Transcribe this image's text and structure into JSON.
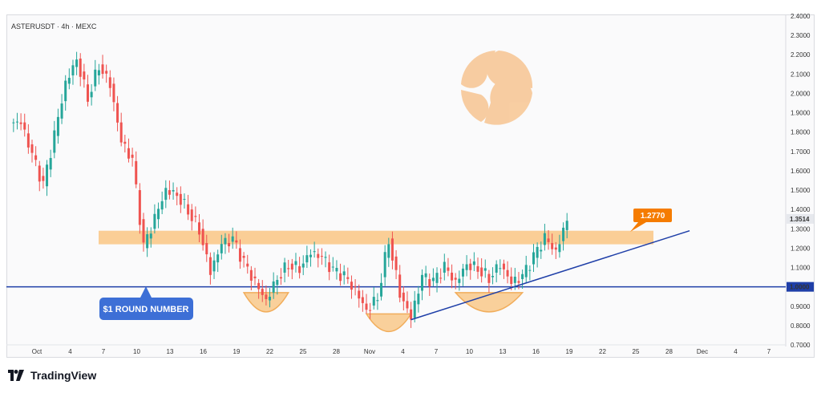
{
  "header": {
    "symbol_line": "ASTERUSDT · 4h · MEXC"
  },
  "footer": {
    "brand": "TradingView"
  },
  "colors": {
    "up": "#26a69a",
    "down": "#ef5350",
    "zone": "#f9c98b",
    "trendline": "#1f3fa8",
    "round_line": "#1f3fa8",
    "badge_orange": "#f57c00",
    "badge_blue": "#3d6fd6",
    "logo": "#f7c592"
  },
  "chart_data": {
    "type": "candlestick",
    "title": "",
    "y_axis": {
      "min": 0.7,
      "max": 2.4,
      "ticks": [
        "2.4000",
        "2.3000",
        "2.2000",
        "2.1000",
        "2.0000",
        "1.9000",
        "1.8000",
        "1.7000",
        "1.6000",
        "1.5000",
        "1.4000",
        "1.3000",
        "1.2000",
        "1.1000",
        "1.0000",
        "0.9000",
        "0.8000",
        "0.7000"
      ]
    },
    "x_axis": {
      "ticks": [
        "Oct",
        "4",
        "7",
        "10",
        "13",
        "16",
        "19",
        "22",
        "25",
        "28",
        "Nov",
        "4",
        "7",
        "10",
        "13",
        "16",
        "19",
        "22",
        "25",
        "28",
        "Dec",
        "4",
        "7"
      ]
    },
    "current_price": "1.3514",
    "resistance_zone": {
      "low": 1.22,
      "high": 1.29,
      "from": "Oct 1",
      "to": "Nov 25"
    },
    "round_number": {
      "value": 1.0,
      "label": "1.0000",
      "annotation": "$1 ROUND NUMBER"
    },
    "target_label": "1.2770",
    "trendline": [
      {
        "date": "Nov 4",
        "price": 0.83
      },
      {
        "date": "Nov 29",
        "price": 1.29
      }
    ],
    "price_path": [
      [
        "Sep 29",
        1.85
      ],
      [
        "Oct 1",
        1.68
      ],
      [
        "Oct 2",
        1.52
      ],
      [
        "Oct 3",
        1.78
      ],
      [
        "Oct 4",
        2.05
      ],
      [
        "Oct 5",
        2.18
      ],
      [
        "Oct 6",
        1.98
      ],
      [
        "Oct 7",
        2.15
      ],
      [
        "Oct 8",
        2.05
      ],
      [
        "Oct 9",
        1.75
      ],
      [
        "Oct 10",
        1.65
      ],
      [
        "Oct 11",
        1.2
      ],
      [
        "Oct 12",
        1.35
      ],
      [
        "Oct 13",
        1.5
      ],
      [
        "Oct 14",
        1.48
      ],
      [
        "Oct 15",
        1.4
      ],
      [
        "Oct 16",
        1.3
      ],
      [
        "Oct 17",
        1.08
      ],
      [
        "Oct 18",
        1.22
      ],
      [
        "Oct 19",
        1.24
      ],
      [
        "Oct 20",
        1.12
      ],
      [
        "Oct 21",
        1.02
      ],
      [
        "Oct 22",
        0.93
      ],
      [
        "Oct 23",
        1.05
      ],
      [
        "Oct 24",
        1.12
      ],
      [
        "Oct 25",
        1.1
      ],
      [
        "Oct 26",
        1.18
      ],
      [
        "Oct 27",
        1.15
      ],
      [
        "Oct 28",
        1.08
      ],
      [
        "Oct 29",
        1.05
      ],
      [
        "Oct 30",
        0.98
      ],
      [
        "Oct 31",
        0.88
      ],
      [
        "Nov 1",
        0.95
      ],
      [
        "Nov 2",
        1.25
      ],
      [
        "Nov 3",
        0.97
      ],
      [
        "Nov 4",
        0.84
      ],
      [
        "Nov 5",
        1.05
      ],
      [
        "Nov 6",
        1.02
      ],
      [
        "Nov 7",
        1.1
      ],
      [
        "Nov 8",
        1.02
      ],
      [
        "Nov 9",
        1.12
      ],
      [
        "Nov 10",
        1.1
      ],
      [
        "Nov 11",
        1.05
      ],
      [
        "Nov 12",
        1.12
      ],
      [
        "Nov 13",
        1.02
      ],
      [
        "Nov 14",
        1.05
      ],
      [
        "Nov 15",
        1.15
      ],
      [
        "Nov 16",
        1.25
      ],
      [
        "Nov 17",
        1.18
      ],
      [
        "Nov 18",
        1.35
      ]
    ],
    "rounded_bottoms": [
      {
        "start": "Oct 20",
        "end": "Oct 24"
      },
      {
        "start": "Oct 31",
        "end": "Nov 4"
      },
      {
        "start": "Nov 8",
        "end": "Nov 14"
      }
    ]
  }
}
